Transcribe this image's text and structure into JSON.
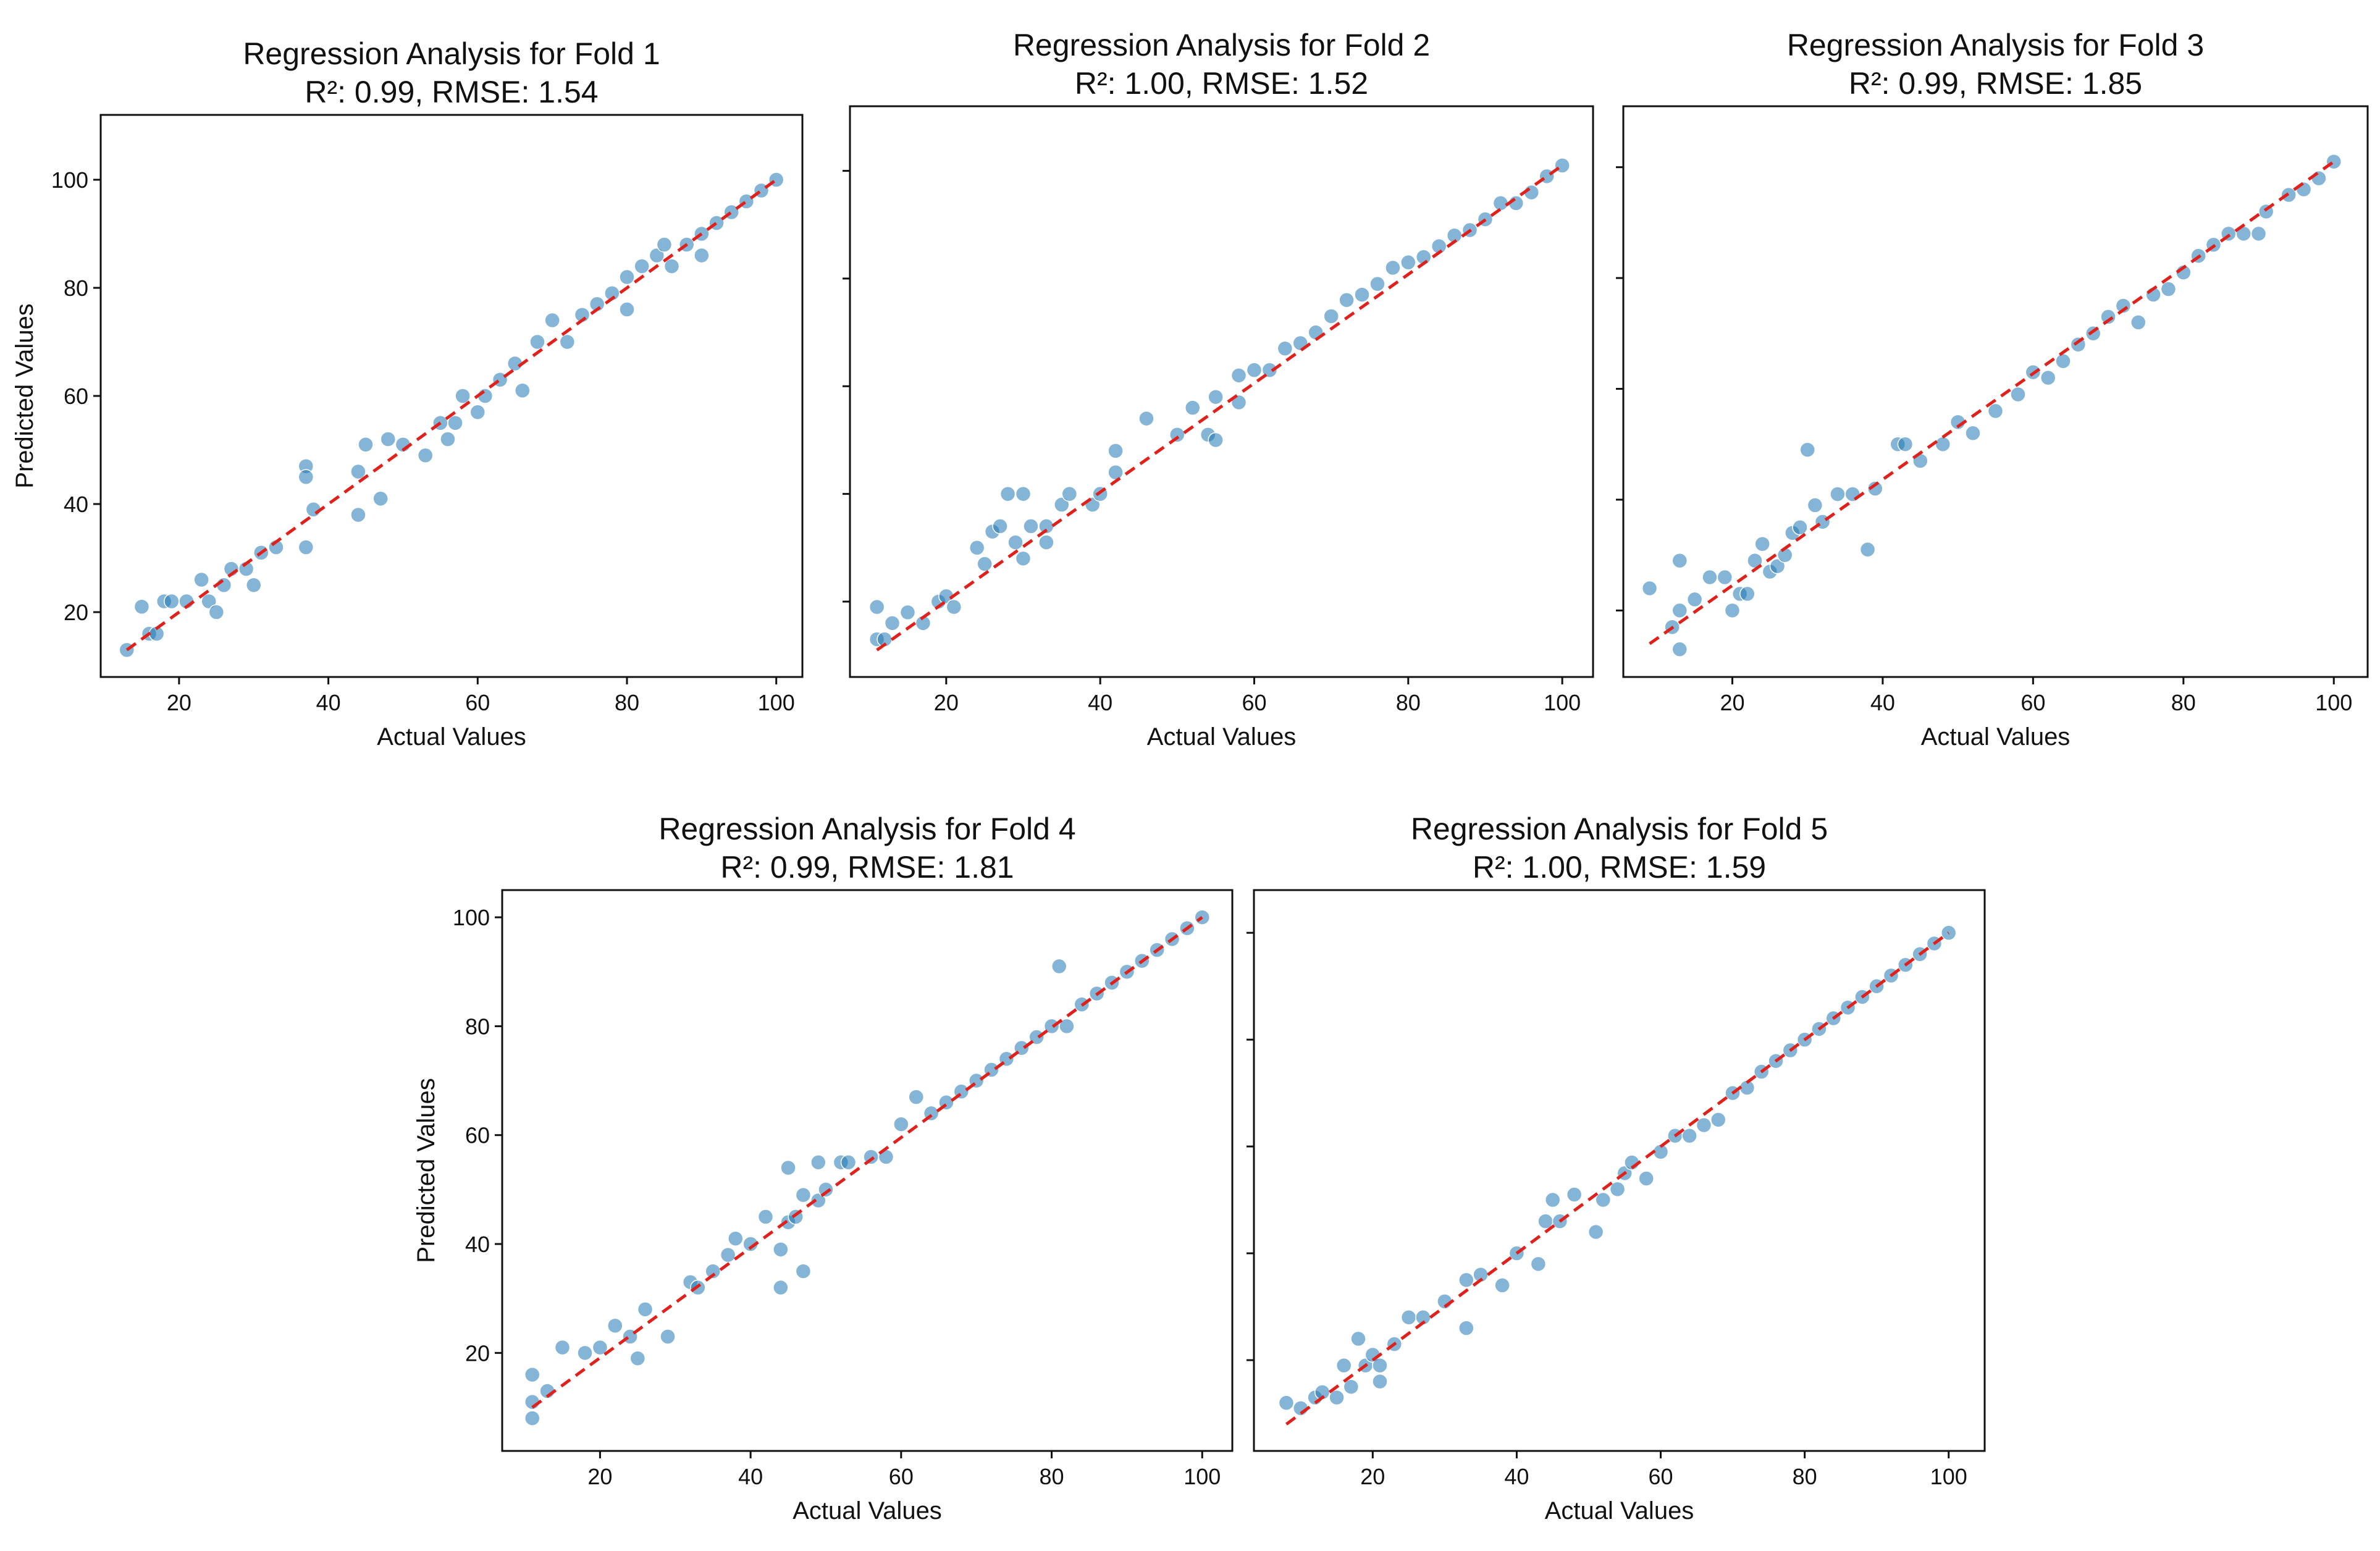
{
  "chart_data": [
    {
      "type": "scatter",
      "title": "Regression Analysis for Fold 1",
      "subtitle": "R²: 0.99, RMSE: 1.54",
      "xlabel": "Actual Values",
      "ylabel": "Predicted Values",
      "show_yticklabels": true,
      "xlim": [
        9.5,
        103.5
      ],
      "ylim": [
        8,
        112
      ],
      "xticks": [
        20,
        40,
        60,
        80,
        100
      ],
      "yticks": [
        20,
        40,
        60,
        80,
        100
      ],
      "reference_line": {
        "x": [
          13,
          100
        ],
        "y": [
          13,
          100
        ],
        "style": "dashed",
        "color": "#e0211b"
      },
      "x": [
        13,
        15,
        16,
        17,
        18,
        19,
        21,
        23,
        24,
        25,
        26,
        27,
        29,
        30,
        31,
        33,
        37,
        37,
        37,
        38,
        44,
        44,
        45,
        47,
        48,
        50,
        53,
        55,
        56,
        57,
        58,
        60,
        61,
        63,
        65,
        66,
        68,
        70,
        72,
        74,
        76,
        78,
        80,
        80,
        82,
        84,
        85,
        86,
        88,
        90,
        90,
        92,
        94,
        96,
        98,
        100
      ],
      "y": [
        13,
        21,
        16,
        16,
        22,
        22,
        22,
        26,
        22,
        20,
        25,
        28,
        28,
        25,
        31,
        32,
        47,
        45,
        32,
        39,
        38,
        46,
        51,
        41,
        52,
        51,
        49,
        55,
        52,
        55,
        60,
        57,
        60,
        63,
        66,
        61,
        70,
        74,
        70,
        75,
        77,
        79,
        76,
        82,
        84,
        86,
        88,
        84,
        88,
        90,
        86,
        92,
        94,
        96,
        98,
        100
      ]
    },
    {
      "type": "scatter",
      "title": "Regression Analysis for Fold 2",
      "subtitle": "R²: 1.00, RMSE: 1.52",
      "xlabel": "Actual Values",
      "ylabel": "",
      "show_yticklabels": false,
      "xlim": [
        7.5,
        104
      ],
      "ylim": [
        6,
        112
      ],
      "xticks": [
        20,
        40,
        60,
        80,
        100
      ],
      "yticks": [
        20,
        40,
        60,
        80,
        100
      ],
      "reference_line": {
        "x": [
          11,
          100
        ],
        "y": [
          11,
          101
        ],
        "style": "dashed",
        "color": "#e0211b"
      },
      "x": [
        11,
        11,
        12,
        13,
        15,
        17,
        19,
        20,
        21,
        24,
        25,
        26,
        27,
        28,
        29,
        30,
        30,
        31,
        33,
        33,
        35,
        36,
        39,
        40,
        42,
        42,
        46,
        50,
        52,
        54,
        55,
        55,
        58,
        58,
        60,
        62,
        64,
        66,
        68,
        70,
        72,
        74,
        76,
        78,
        80,
        82,
        84,
        86,
        88,
        90,
        92,
        94,
        96,
        98,
        100
      ],
      "y": [
        13,
        19,
        13,
        16,
        18,
        16,
        20,
        21,
        19,
        30,
        27,
        33,
        34,
        40,
        31,
        28,
        40,
        34,
        31,
        34,
        38,
        40,
        38,
        40,
        48,
        44,
        54,
        51,
        56,
        51,
        58,
        50,
        57,
        62,
        63,
        63,
        67,
        68,
        70,
        73,
        76,
        77,
        79,
        82,
        83,
        84,
        86,
        88,
        89,
        91,
        94,
        94,
        96,
        99,
        101
      ]
    },
    {
      "type": "scatter",
      "title": "Regression Analysis for Fold 3",
      "subtitle": "R²: 0.99, RMSE: 1.85",
      "xlabel": "Actual Values",
      "ylabel": "",
      "show_yticklabels": false,
      "xlim": [
        5.5,
        104.5
      ],
      "ylim": [
        8,
        111
      ],
      "xticks": [
        20,
        40,
        60,
        80,
        100
      ],
      "yticks": [
        20,
        40,
        60,
        80,
        100
      ],
      "reference_line": {
        "x": [
          9,
          100
        ],
        "y": [
          14,
          101
        ],
        "style": "dashed",
        "color": "#e0211b"
      },
      "x": [
        9,
        12,
        13,
        13,
        13,
        15,
        17,
        19,
        20,
        21,
        22,
        23,
        24,
        25,
        26,
        27,
        28,
        29,
        30,
        31,
        32,
        34,
        36,
        38,
        39,
        42,
        43,
        45,
        48,
        50,
        52,
        55,
        58,
        60,
        62,
        64,
        66,
        68,
        70,
        72,
        74,
        76,
        78,
        80,
        82,
        84,
        86,
        88,
        90,
        91,
        94,
        96,
        98,
        100
      ],
      "y": [
        24,
        17,
        29,
        20,
        13,
        22,
        26,
        26,
        20,
        23,
        23,
        29,
        32,
        27,
        28,
        30,
        34,
        35,
        49,
        39,
        36,
        41,
        41,
        31,
        42,
        50,
        50,
        47,
        50,
        54,
        52,
        56,
        59,
        63,
        62,
        65,
        68,
        70,
        73,
        75,
        72,
        77,
        78,
        81,
        84,
        86,
        88,
        88,
        88,
        92,
        95,
        96,
        98,
        101
      ]
    },
    {
      "type": "scatter",
      "title": "Regression Analysis for Fold 4",
      "subtitle": "R²: 0.99, RMSE: 1.81",
      "xlabel": "Actual Values",
      "ylabel": "Predicted Values",
      "show_yticklabels": true,
      "xlim": [
        7,
        104
      ],
      "ylim": [
        2,
        105
      ],
      "xticks": [
        20,
        40,
        60,
        80,
        100
      ],
      "yticks": [
        20,
        40,
        60,
        80,
        100
      ],
      "reference_line": {
        "x": [
          11,
          100
        ],
        "y": [
          10,
          100
        ],
        "style": "dashed",
        "color": "#e0211b"
      },
      "x": [
        11,
        11,
        11,
        13,
        15,
        18,
        20,
        22,
        24,
        25,
        26,
        29,
        32,
        33,
        35,
        37,
        38,
        40,
        42,
        44,
        44,
        45,
        45,
        46,
        47,
        47,
        49,
        49,
        50,
        52,
        53,
        56,
        58,
        60,
        62,
        64,
        66,
        68,
        70,
        72,
        74,
        76,
        78,
        80,
        81,
        82,
        84,
        86,
        88,
        90,
        92,
        94,
        96,
        98,
        100
      ],
      "y": [
        16,
        11,
        8,
        13,
        21,
        20,
        21,
        25,
        23,
        19,
        28,
        23,
        33,
        32,
        35,
        38,
        41,
        40,
        45,
        32,
        39,
        54,
        44,
        45,
        35,
        49,
        48,
        55,
        50,
        55,
        55,
        56,
        56,
        62,
        67,
        64,
        66,
        68,
        70,
        72,
        74,
        76,
        78,
        80,
        91,
        80,
        84,
        86,
        88,
        90,
        92,
        94,
        96,
        98,
        100
      ]
    },
    {
      "type": "scatter",
      "title": "Regression Analysis for Fold 5",
      "subtitle": "R²: 1.00, RMSE: 1.59",
      "xlabel": "Actual Values",
      "ylabel": "",
      "show_yticklabels": false,
      "xlim": [
        3.5,
        105
      ],
      "ylim": [
        3,
        108
      ],
      "xticks": [
        20,
        40,
        60,
        80,
        100
      ],
      "yticks": [
        20,
        40,
        60,
        80,
        100
      ],
      "reference_line": {
        "x": [
          8,
          100
        ],
        "y": [
          8,
          100
        ],
        "style": "dashed",
        "color": "#e0211b"
      },
      "x": [
        8,
        10,
        12,
        13,
        15,
        16,
        17,
        18,
        19,
        20,
        21,
        21,
        23,
        25,
        27,
        30,
        33,
        33,
        35,
        38,
        40,
        43,
        44,
        45,
        46,
        48,
        51,
        52,
        54,
        55,
        56,
        58,
        60,
        62,
        64,
        66,
        68,
        70,
        72,
        74,
        76,
        78,
        80,
        82,
        84,
        86,
        88,
        90,
        92,
        94,
        96,
        98,
        100
      ],
      "y": [
        12,
        11,
        13,
        14,
        13,
        19,
        15,
        24,
        19,
        21,
        16,
        19,
        23,
        28,
        28,
        31,
        26,
        35,
        36,
        34,
        40,
        38,
        46,
        50,
        46,
        51,
        44,
        50,
        52,
        55,
        57,
        54,
        59,
        62,
        62,
        64,
        65,
        70,
        71,
        74,
        76,
        78,
        80,
        82,
        84,
        86,
        88,
        90,
        92,
        94,
        96,
        98,
        100
      ]
    }
  ]
}
